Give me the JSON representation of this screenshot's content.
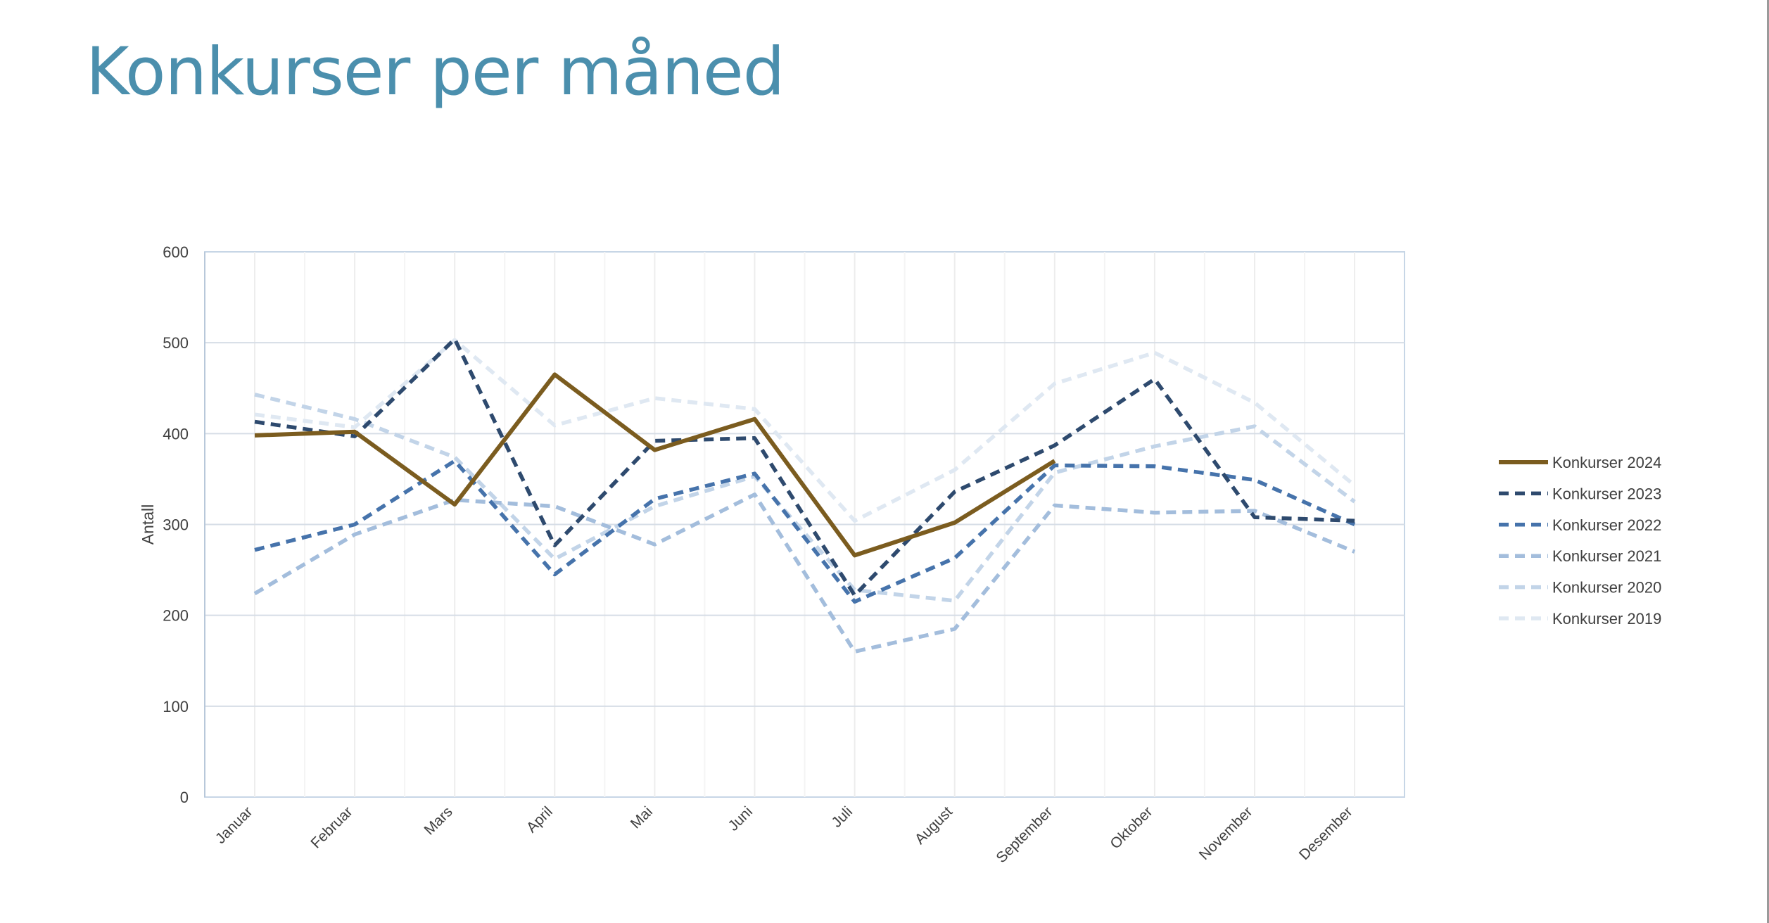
{
  "slide": {
    "title": "Konkurser per måned"
  },
  "chart_data": {
    "type": "line",
    "title": "",
    "xlabel": "",
    "ylabel": "Antall",
    "ylim": [
      0,
      600
    ],
    "y_ticks": [
      0,
      100,
      200,
      300,
      400,
      500,
      600
    ],
    "grid": true,
    "legend_position": "right",
    "categories": [
      "Januar",
      "Februar",
      "Mars",
      "April",
      "Mai",
      "Juni",
      "Juli",
      "August",
      "September",
      "Oktober",
      "November",
      "Desember"
    ],
    "series": [
      {
        "name": "Konkurser 2024",
        "color": "#7b5c1f",
        "style": "solid",
        "values": [
          398,
          402,
          322,
          465,
          382,
          416,
          266,
          302,
          370,
          null,
          null,
          null
        ]
      },
      {
        "name": "Konkurser 2023",
        "color": "#2e4a6e",
        "style": "dashed",
        "values": [
          413,
          397,
          504,
          277,
          392,
          395,
          222,
          336,
          387,
          460,
          308,
          304
        ]
      },
      {
        "name": "Konkurser 2022",
        "color": "#4673ab",
        "style": "dashed",
        "values": [
          272,
          300,
          370,
          245,
          328,
          356,
          215,
          263,
          365,
          364,
          349,
          300
        ]
      },
      {
        "name": "Konkurser 2021",
        "color": "#a3bddc",
        "style": "dashed",
        "values": [
          224,
          289,
          327,
          320,
          278,
          333,
          160,
          185,
          321,
          313,
          315,
          270
        ]
      },
      {
        "name": "Konkurser 2020",
        "color": "#c2d4e8",
        "style": "dashed",
        "values": [
          443,
          416,
          374,
          262,
          320,
          353,
          228,
          216,
          357,
          386,
          408,
          325
        ]
      },
      {
        "name": "Konkurser 2019",
        "color": "#dfe8f2",
        "style": "dashed",
        "values": [
          421,
          407,
          503,
          409,
          439,
          427,
          304,
          360,
          455,
          489,
          434,
          343
        ]
      }
    ]
  }
}
